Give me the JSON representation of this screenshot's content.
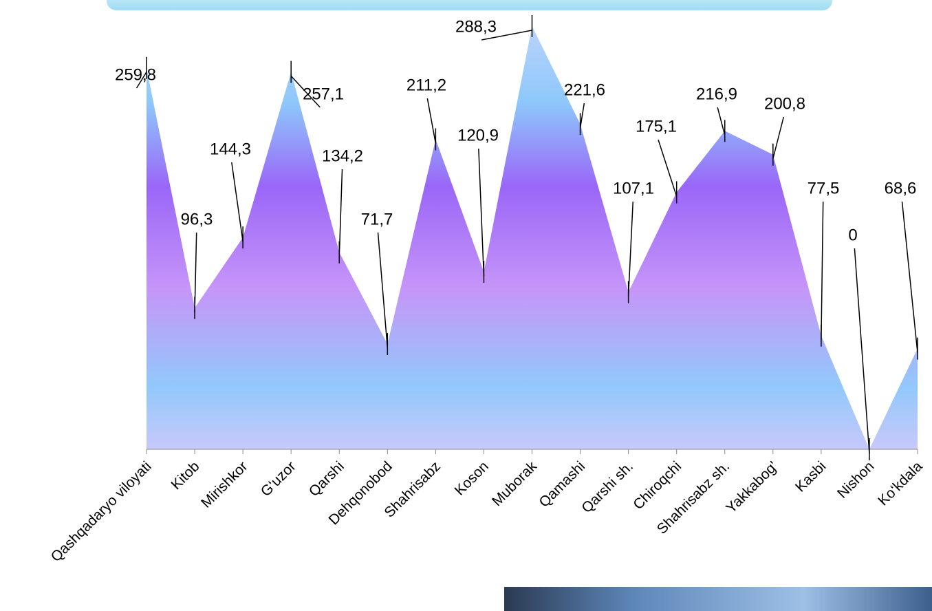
{
  "chart_data": {
    "type": "area",
    "categories": [
      "Qashqadaryo viloyati",
      "Kitob",
      "Mirishkor",
      "G‘uzor",
      "Qarshi",
      "Dehqonobod",
      "Shahrisabz",
      "Koson",
      "Muborak",
      "Qamashi",
      "Qarshi sh.",
      "Chiroqchi",
      "Shahrisabz sh.",
      "Yakkabog'",
      "Kasbi",
      "Nishon",
      "Ko‘kdala"
    ],
    "values": [
      259.8,
      96.3,
      144.3,
      257.1,
      134.2,
      71.7,
      211.2,
      120.9,
      288.3,
      221.6,
      107.1,
      175.1,
      216.9,
      200.8,
      77.5,
      0,
      68.6
    ],
    "value_labels": [
      "259,8",
      "96,3",
      "144,3",
      "257,1",
      "134,2",
      "71,7",
      "211,2",
      "120,9",
      "288,3",
      "221,6",
      "107,1",
      "175,1",
      "216,9",
      "200,8",
      "77,5",
      "0",
      "68,6"
    ],
    "ylim": [
      0,
      300
    ]
  }
}
